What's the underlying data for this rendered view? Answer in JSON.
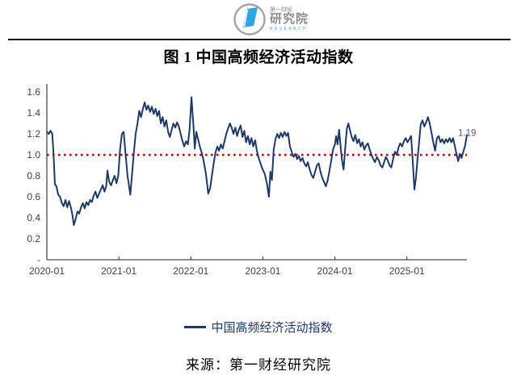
{
  "logo": {
    "brand_small": "第一财经",
    "brand_main": "研究院",
    "brand_sub": "RESEARCH",
    "blue": "#2ea7e0",
    "gray": "#8c8c8c"
  },
  "title": "图 1  中国高频经济活动指数",
  "legend": {
    "label": "中国高频经济活动指数"
  },
  "source": "来源：第一财经研究院",
  "chart_data": {
    "type": "line",
    "title": "图 1 中国高频经济活动指数",
    "xlabel": "",
    "ylabel": "",
    "grid": false,
    "legend_position": "bottom",
    "ylim": [
      0,
      1.6
    ],
    "x_encoding": "t = months since 2020-01",
    "x_ticks": [
      {
        "t": 0,
        "label": "2020-01"
      },
      {
        "t": 12,
        "label": "2021-01"
      },
      {
        "t": 24,
        "label": "2022-01"
      },
      {
        "t": 36,
        "label": "2023-01"
      },
      {
        "t": 48,
        "label": "2024-01"
      },
      {
        "t": 60,
        "label": "2025-01"
      }
    ],
    "y_ticks": [
      {
        "v": 1.6,
        "label": "1.6"
      },
      {
        "v": 1.4,
        "label": "1.4"
      },
      {
        "v": 1.2,
        "label": "1.2"
      },
      {
        "v": 1.0,
        "label": "1.0"
      },
      {
        "v": 0.8,
        "label": "0.8"
      },
      {
        "v": 0.6,
        "label": "0.6"
      },
      {
        "v": 0.4,
        "label": "0.4"
      },
      {
        "v": 0.2,
        "label": "0.2"
      },
      {
        "v": 0,
        "label": "-"
      }
    ],
    "reference_line": {
      "value": 1.0,
      "color": "#c00000",
      "style": "dotted"
    },
    "end_label": "1.19",
    "series": [
      {
        "name": "中国高频经济活动指数",
        "color": "#1f3864",
        "points": [
          [
            0,
            1.22
          ],
          [
            0.3,
            1.2
          ],
          [
            0.6,
            1.23
          ],
          [
            0.9,
            1.2
          ],
          [
            1.1,
            1.02
          ],
          [
            1.35,
            0.72
          ],
          [
            1.6,
            0.7
          ],
          [
            1.9,
            0.62
          ],
          [
            2.2,
            0.6
          ],
          [
            2.5,
            0.54
          ],
          [
            2.8,
            0.51
          ],
          [
            3.1,
            0.57
          ],
          [
            3.4,
            0.5
          ],
          [
            3.7,
            0.56
          ],
          [
            4,
            0.5
          ],
          [
            4.25,
            0.43
          ],
          [
            4.5,
            0.33
          ],
          [
            4.8,
            0.39
          ],
          [
            5.1,
            0.46
          ],
          [
            5.4,
            0.44
          ],
          [
            5.7,
            0.5
          ],
          [
            6,
            0.54
          ],
          [
            6.3,
            0.49
          ],
          [
            6.6,
            0.55
          ],
          [
            6.9,
            0.52
          ],
          [
            7.2,
            0.57
          ],
          [
            7.5,
            0.55
          ],
          [
            7.8,
            0.61
          ],
          [
            8.1,
            0.65
          ],
          [
            8.4,
            0.59
          ],
          [
            8.7,
            0.63
          ],
          [
            9,
            0.67
          ],
          [
            9.3,
            0.71
          ],
          [
            9.6,
            0.65
          ],
          [
            9.9,
            0.7
          ],
          [
            10.1,
            0.85
          ],
          [
            10.4,
            0.74
          ],
          [
            10.7,
            0.71
          ],
          [
            11,
            0.76
          ],
          [
            11.3,
            0.8
          ],
          [
            11.6,
            0.73
          ],
          [
            11.9,
            0.8
          ],
          [
            12.2,
            1.05
          ],
          [
            12.5,
            1.2
          ],
          [
            12.8,
            1.22
          ],
          [
            13.1,
            1.02
          ],
          [
            13.45,
            0.8
          ],
          [
            13.9,
            0.62
          ],
          [
            14.2,
            0.82
          ],
          [
            14.5,
            1.02
          ],
          [
            14.8,
            1.2
          ],
          [
            15.1,
            1.3
          ],
          [
            15.4,
            1.42
          ],
          [
            15.7,
            1.36
          ],
          [
            16,
            1.44
          ],
          [
            16.3,
            1.5
          ],
          [
            16.6,
            1.43
          ],
          [
            16.9,
            1.47
          ],
          [
            17.2,
            1.41
          ],
          [
            17.5,
            1.46
          ],
          [
            17.8,
            1.39
          ],
          [
            18.1,
            1.44
          ],
          [
            18.4,
            1.37
          ],
          [
            18.7,
            1.42
          ],
          [
            19,
            1.3
          ],
          [
            19.3,
            1.36
          ],
          [
            19.6,
            1.27
          ],
          [
            19.9,
            1.33
          ],
          [
            20.2,
            1.22
          ],
          [
            20.5,
            1.17
          ],
          [
            20.8,
            1.24
          ],
          [
            21.1,
            1.3
          ],
          [
            21.4,
            1.26
          ],
          [
            21.7,
            1.31
          ],
          [
            22,
            1.27
          ],
          [
            22.3,
            1.2
          ],
          [
            22.6,
            1.13
          ],
          [
            22.9,
            1.08
          ],
          [
            23.2,
            1.13
          ],
          [
            23.5,
            1.1
          ],
          [
            23.8,
            1.25
          ],
          [
            24.1,
            1.55
          ],
          [
            24.4,
            1.3
          ],
          [
            24.65,
            1.06
          ],
          [
            24.9,
            1.22
          ],
          [
            25.2,
            1.15
          ],
          [
            25.5,
            1.08
          ],
          [
            25.8,
            1.02
          ],
          [
            26.1,
            0.95
          ],
          [
            26.5,
            0.82
          ],
          [
            26.9,
            0.63
          ],
          [
            27.2,
            0.68
          ],
          [
            27.5,
            0.8
          ],
          [
            27.8,
            0.92
          ],
          [
            28.1,
            1.02
          ],
          [
            28.4,
            1.08
          ],
          [
            28.7,
            1.04
          ],
          [
            29,
            1.1
          ],
          [
            29.3,
            1.06
          ],
          [
            29.6,
            1.13
          ],
          [
            29.9,
            1.2
          ],
          [
            30.2,
            1.25
          ],
          [
            30.5,
            1.3
          ],
          [
            30.8,
            1.26
          ],
          [
            31.1,
            1.2
          ],
          [
            31.4,
            1.26
          ],
          [
            31.7,
            1.18
          ],
          [
            32,
            1.24
          ],
          [
            32.3,
            1.28
          ],
          [
            32.6,
            1.17
          ],
          [
            32.9,
            1.23
          ],
          [
            33.2,
            1.12
          ],
          [
            33.5,
            1.18
          ],
          [
            33.8,
            1.1
          ],
          [
            34.1,
            1.16
          ],
          [
            34.4,
            1.08
          ],
          [
            34.7,
            1.14
          ],
          [
            35,
            1.04
          ],
          [
            35.3,
            0.97
          ],
          [
            35.6,
            0.92
          ],
          [
            35.9,
            0.87
          ],
          [
            36.3,
            0.82
          ],
          [
            36.7,
            0.72
          ],
          [
            37,
            0.6
          ],
          [
            37.25,
            0.84
          ],
          [
            37.5,
            0.76
          ],
          [
            37.8,
            1.05
          ],
          [
            38.1,
            1.15
          ],
          [
            38.4,
            1.2
          ],
          [
            38.7,
            1.16
          ],
          [
            39,
            1.21
          ],
          [
            39.3,
            1.17
          ],
          [
            39.6,
            1.22
          ],
          [
            39.9,
            1.18
          ],
          [
            40.2,
            1.21
          ],
          [
            40.5,
            1.08
          ],
          [
            40.8,
            1.03
          ],
          [
            41.1,
            0.98
          ],
          [
            41.4,
            1.01
          ],
          [
            41.7,
            0.96
          ],
          [
            42,
            0.99
          ],
          [
            42.3,
            0.94
          ],
          [
            42.6,
            0.97
          ],
          [
            42.9,
            0.92
          ],
          [
            43.2,
            0.89
          ],
          [
            43.5,
            0.93
          ],
          [
            43.8,
            0.86
          ],
          [
            44.1,
            0.81
          ],
          [
            44.4,
            0.78
          ],
          [
            44.7,
            0.84
          ],
          [
            45,
            0.9
          ],
          [
            45.3,
            0.92
          ],
          [
            45.6,
            0.84
          ],
          [
            45.9,
            0.78
          ],
          [
            46.2,
            0.74
          ],
          [
            46.5,
            0.7
          ],
          [
            46.8,
            0.76
          ],
          [
            47.1,
            0.85
          ],
          [
            47.4,
            0.95
          ],
          [
            47.7,
            1.05
          ],
          [
            48,
            1.1
          ],
          [
            48.2,
            1.18
          ],
          [
            48.45,
            1.1
          ],
          [
            48.7,
            1.24
          ],
          [
            49,
            1.05
          ],
          [
            49.2,
            0.94
          ],
          [
            49.45,
            0.86
          ],
          [
            49.7,
            1.05
          ],
          [
            50,
            1.25
          ],
          [
            50.25,
            1.3
          ],
          [
            50.5,
            1.24
          ],
          [
            50.8,
            1.17
          ],
          [
            51.1,
            1.13
          ],
          [
            51.4,
            1.19
          ],
          [
            51.7,
            1.11
          ],
          [
            52,
            1.15
          ],
          [
            52.3,
            1.08
          ],
          [
            52.6,
            1.12
          ],
          [
            52.9,
            1.05
          ],
          [
            53.2,
            1.09
          ],
          [
            53.5,
            1.11
          ],
          [
            53.8,
            1.05
          ],
          [
            54.1,
            1.0
          ],
          [
            54.4,
            0.96
          ],
          [
            54.7,
            0.93
          ],
          [
            55,
            0.98
          ],
          [
            55.3,
            0.95
          ],
          [
            55.6,
            0.9
          ],
          [
            55.9,
            0.88
          ],
          [
            56.2,
            0.93
          ],
          [
            56.5,
            0.98
          ],
          [
            56.8,
            0.95
          ],
          [
            57.1,
            0.9
          ],
          [
            57.4,
            0.88
          ],
          [
            57.7,
            0.96
          ],
          [
            58,
            1.03
          ],
          [
            58.3,
            1.0
          ],
          [
            58.6,
            1.07
          ],
          [
            58.9,
            1.11
          ],
          [
            59.2,
            1.08
          ],
          [
            59.5,
            1.13
          ],
          [
            59.8,
            1.16
          ],
          [
            60.1,
            1.12
          ],
          [
            60.4,
            1.15
          ],
          [
            60.7,
            1.18
          ],
          [
            61,
            0.92
          ],
          [
            61.25,
            0.67
          ],
          [
            61.5,
            0.78
          ],
          [
            61.75,
            0.95
          ],
          [
            62,
            1.1
          ],
          [
            62.3,
            1.29
          ],
          [
            62.6,
            1.33
          ],
          [
            62.9,
            1.27
          ],
          [
            63.2,
            1.31
          ],
          [
            63.5,
            1.36
          ],
          [
            63.8,
            1.3
          ],
          [
            64.1,
            1.21
          ],
          [
            64.4,
            1.12
          ],
          [
            64.7,
            1.04
          ],
          [
            65,
            1.16
          ],
          [
            65.3,
            1.18
          ],
          [
            65.6,
            1.12
          ],
          [
            65.9,
            1.15
          ],
          [
            66.2,
            1.11
          ],
          [
            66.5,
            1.15
          ],
          [
            66.8,
            1.12
          ],
          [
            67.1,
            1.16
          ],
          [
            67.4,
            1.12
          ],
          [
            67.7,
            1.16
          ],
          [
            68,
            1.08
          ],
          [
            68.3,
            1.0
          ],
          [
            68.55,
            0.94
          ],
          [
            68.8,
            1.01
          ],
          [
            69.1,
            0.97
          ],
          [
            69.4,
            1.03
          ],
          [
            69.7,
            1.09
          ],
          [
            70,
            1.19
          ]
        ]
      }
    ]
  }
}
